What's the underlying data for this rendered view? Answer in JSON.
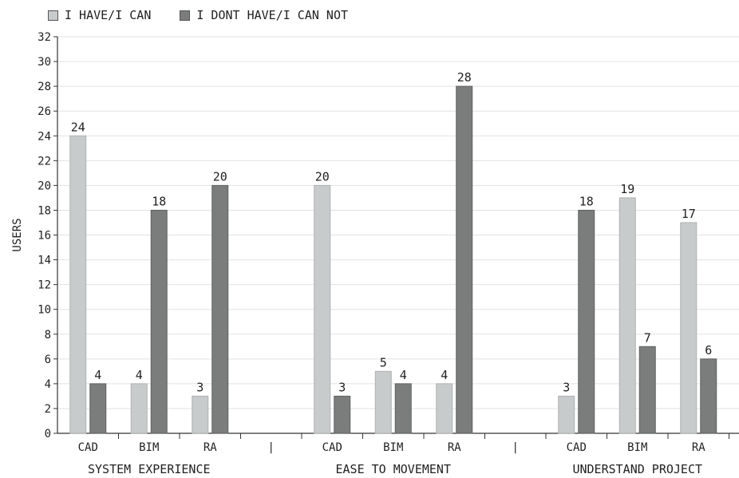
{
  "chart_data": {
    "type": "bar",
    "ylabel": "USERS",
    "ylim": [
      0,
      32
    ],
    "ytick_step": 2,
    "grid": true,
    "legend_placement": "top-left",
    "series": [
      {
        "name": "I HAVE/I CAN",
        "color": "#c8cbcb"
      },
      {
        "name": "I DONT HAVE/I CAN NOT",
        "color": "#7b7d7d"
      }
    ],
    "slots": [
      {
        "label": "CAD",
        "values": [
          24,
          4
        ]
      },
      {
        "label": "BIM",
        "values": [
          4,
          18
        ]
      },
      {
        "label": "RA",
        "values": [
          3,
          20
        ]
      },
      {
        "label": "|",
        "separator": true
      },
      {
        "label": "CAD",
        "values": [
          20,
          3
        ]
      },
      {
        "label": "BIM",
        "values": [
          5,
          4
        ]
      },
      {
        "label": "RA",
        "values": [
          4,
          28
        ]
      },
      {
        "label": "|",
        "separator": true
      },
      {
        "label": "CAD",
        "values": [
          3,
          18
        ]
      },
      {
        "label": "BIM",
        "values": [
          19,
          7
        ]
      },
      {
        "label": "RA",
        "values": [
          17,
          6
        ]
      }
    ],
    "groups": [
      {
        "label": "SYSTEM EXPERIENCE",
        "first_slot": 0,
        "last_slot": 2
      },
      {
        "label": "EASE TO MOVEMENT",
        "first_slot": 4,
        "last_slot": 6
      },
      {
        "label": "UNDERSTAND PROJECT",
        "first_slot": 8,
        "last_slot": 10
      }
    ]
  }
}
